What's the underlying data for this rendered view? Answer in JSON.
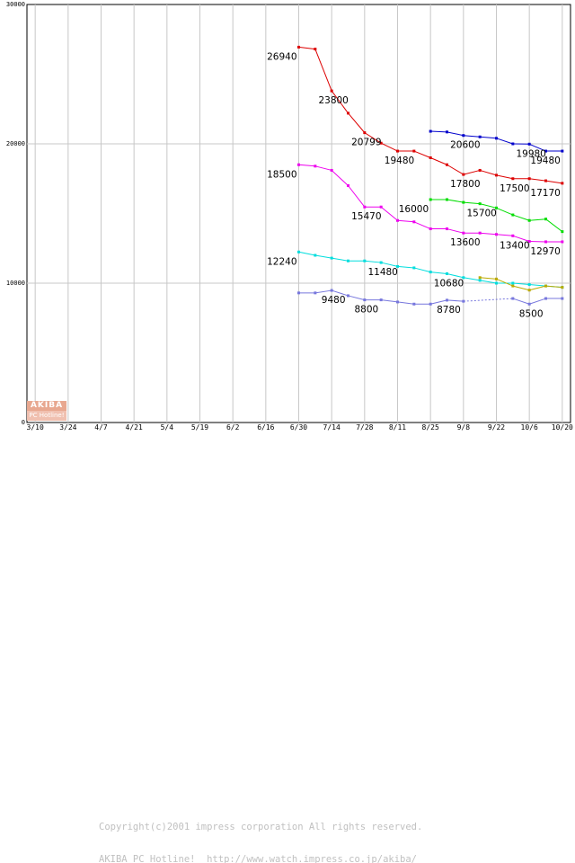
{
  "chart_data": {
    "type": "line",
    "title": "",
    "xlabel": "",
    "ylabel": "",
    "ylim": [
      0,
      30000
    ],
    "yticks": [
      0,
      10000,
      20000,
      30000
    ],
    "ytick_labels": [
      "0",
      "10000",
      "20000",
      "30000"
    ],
    "x_labels": [
      "3/10",
      "3/24",
      "4/7",
      "4/21",
      "5/4",
      "5/19",
      "6/2",
      "6/16",
      "6/30",
      "7/14",
      "7/28",
      "8/11",
      "8/25",
      "9/8",
      "9/22",
      "10/6",
      "10/20"
    ],
    "x_weeks": [
      0,
      2,
      4,
      6,
      8,
      10,
      12,
      14,
      16,
      18,
      20,
      22,
      24,
      26,
      28,
      30,
      32
    ],
    "x_range_weeks": [
      -0.5,
      32.5
    ],
    "grid": true,
    "series": [
      {
        "name": "red",
        "color": "#dd0000",
        "x": [
          16,
          17,
          18,
          19,
          20,
          21,
          22,
          23,
          24,
          25,
          26,
          27,
          28,
          29,
          30,
          31,
          32
        ],
        "values": [
          26940,
          26800,
          23800,
          22200,
          20799,
          20050,
          19480,
          19480,
          19000,
          18500,
          17800,
          18100,
          17750,
          17500,
          17500,
          17350,
          17170
        ]
      },
      {
        "name": "blue",
        "color": "#0000cc",
        "x": [
          24,
          25,
          26,
          27,
          28,
          29,
          30,
          31,
          32
        ],
        "values": [
          20900,
          20850,
          20600,
          20500,
          20400,
          20000,
          19980,
          19480,
          19480
        ]
      },
      {
        "name": "magenta",
        "color": "#ee00ee",
        "x": [
          16,
          17,
          18,
          19,
          20,
          21,
          22,
          23,
          24,
          25,
          26,
          27,
          28,
          29,
          30,
          31,
          32
        ],
        "values": [
          18500,
          18400,
          18100,
          17000,
          15470,
          15470,
          14500,
          14400,
          13900,
          13900,
          13600,
          13600,
          13500,
          13400,
          13000,
          12970,
          12970
        ]
      },
      {
        "name": "green",
        "color": "#00dd00",
        "x": [
          24,
          25,
          26,
          27,
          28,
          29,
          30,
          31,
          32
        ],
        "values": [
          16000,
          16000,
          15800,
          15700,
          15400,
          14900,
          14500,
          14600,
          13700
        ]
      },
      {
        "name": "cyan",
        "color": "#00dddd",
        "x": [
          16,
          17,
          18,
          19,
          20,
          21,
          22,
          23,
          24,
          25,
          26,
          27,
          28,
          29,
          30,
          31,
          32
        ],
        "values": [
          12240,
          12000,
          11800,
          11600,
          11600,
          11480,
          11200,
          11100,
          10800,
          10680,
          10400,
          10200,
          10000,
          10000,
          9900,
          9800,
          9700
        ]
      },
      {
        "name": "olive",
        "color": "#bbaa00",
        "x": [
          27,
          28,
          29,
          30,
          31,
          32
        ],
        "values": [
          10400,
          10300,
          9800,
          9500,
          9800,
          9700
        ]
      },
      {
        "name": "slate",
        "color": "#7777dd",
        "x": [
          16,
          17,
          18,
          19,
          20,
          21,
          22,
          23,
          24,
          25,
          26,
          29,
          30,
          31,
          32
        ],
        "values": [
          9300,
          9300,
          9480,
          9100,
          8800,
          8800,
          8650,
          8500,
          8500,
          8780,
          8700,
          8900,
          8500,
          8900,
          8900
        ],
        "dashed_between": [
          26,
          29
        ]
      }
    ],
    "annotations": [
      {
        "text": "26940",
        "x": 16,
        "y": 26940,
        "anchor": "bl"
      },
      {
        "text": "23800",
        "x": 18,
        "y": 23800,
        "anchor": "b"
      },
      {
        "text": "20799",
        "x": 20,
        "y": 20799,
        "anchor": "b"
      },
      {
        "text": "19480",
        "x": 22,
        "y": 19480,
        "anchor": "b"
      },
      {
        "text": "20600",
        "x": 26,
        "y": 20600,
        "anchor": "b"
      },
      {
        "text": "19980",
        "x": 30,
        "y": 19980,
        "anchor": "b"
      },
      {
        "text": "19480",
        "x": 32,
        "y": 19480,
        "anchor": "bl"
      },
      {
        "text": "17800",
        "x": 26,
        "y": 17800,
        "anchor": "b"
      },
      {
        "text": "17500",
        "x": 29,
        "y": 17500,
        "anchor": "b"
      },
      {
        "text": "17170",
        "x": 32,
        "y": 17170,
        "anchor": "bl"
      },
      {
        "text": "18500",
        "x": 16,
        "y": 18500,
        "anchor": "bl"
      },
      {
        "text": "15470",
        "x": 20,
        "y": 15470,
        "anchor": "b"
      },
      {
        "text": "16000",
        "x": 24,
        "y": 16000,
        "anchor": "bl"
      },
      {
        "text": "15700",
        "x": 27,
        "y": 15700,
        "anchor": "b"
      },
      {
        "text": "13600",
        "x": 26,
        "y": 13600,
        "anchor": "b"
      },
      {
        "text": "13400",
        "x": 29,
        "y": 13400,
        "anchor": "b"
      },
      {
        "text": "12970",
        "x": 32,
        "y": 12970,
        "anchor": "bl"
      },
      {
        "text": "12240",
        "x": 16,
        "y": 12240,
        "anchor": "bl"
      },
      {
        "text": "11480",
        "x": 21,
        "y": 11480,
        "anchor": "b"
      },
      {
        "text": "10680",
        "x": 25,
        "y": 10680,
        "anchor": "b"
      },
      {
        "text": "9480",
        "x": 18,
        "y": 9480,
        "anchor": "b"
      },
      {
        "text": "8800",
        "x": 20,
        "y": 8800,
        "anchor": "b"
      },
      {
        "text": "8780",
        "x": 25,
        "y": 8780,
        "anchor": "b"
      },
      {
        "text": "8500",
        "x": 30,
        "y": 8500,
        "anchor": "b"
      }
    ]
  },
  "footer": {
    "logo_top": "AKIBA",
    "logo_bottom": "PC Hotline!",
    "line1": "Copyright(c)2001 impress corporation All rights reserved.",
    "line2": "AKIBA PC Hotline!  http://www.watch.impress.co.jp/akiba/"
  }
}
